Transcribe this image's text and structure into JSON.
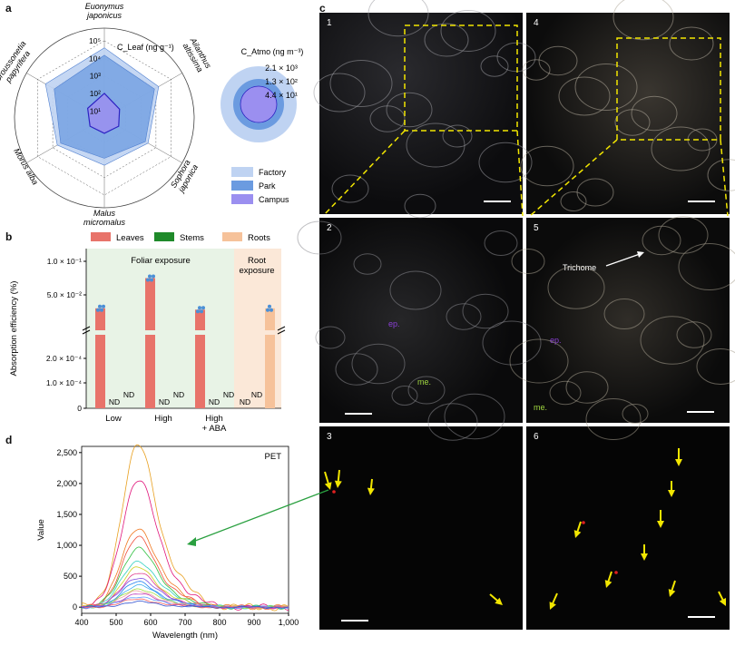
{
  "panel_labels": {
    "a": "a",
    "b": "b",
    "c": "c",
    "d": "d"
  },
  "panel_a": {
    "species": [
      "Euonymus japonicus",
      "Ailanthus altissima",
      "Sophora japonica",
      "Malus micromalus",
      "Morus alba",
      "Broussonetia papyrifera"
    ],
    "species_lines": [
      [
        "Euonymus",
        "japonicus"
      ],
      [
        "Ailanthus",
        "altissima"
      ],
      [
        "Sophora",
        "japonica"
      ],
      [
        "Malus",
        "micromalus"
      ],
      [
        "Morus alba"
      ],
      [
        "Broussonetia",
        "papyrifera"
      ]
    ],
    "axis_title": "C_Leaf (ng g⁻¹)",
    "ticks": [
      "10¹",
      "10²",
      "10³",
      "10⁴",
      "10⁵"
    ],
    "atmo_title": "C_Atmo (ng m⁻³)",
    "atmo_values": [
      "2.1 × 10³",
      "1.3 × 10²",
      "4.4 × 10¹"
    ],
    "legend": [
      "Factory",
      "Park",
      "Campus"
    ],
    "colors": {
      "Factory": "#bfd3f2",
      "Park": "#6b9be0",
      "Campus": "#9b8ff0"
    },
    "chart_data": {
      "type": "radar",
      "categories": [
        "Euonymus japonicus",
        "Ailanthus altissima",
        "Sophora japonica",
        "Malus micromalus",
        "Morus alba",
        "Broussonetia papyrifera"
      ],
      "scale": "log10",
      "rlim": [
        1,
        100000
      ],
      "series": [
        {
          "name": "Factory",
          "values": [
            40000,
            15000,
            3000,
            2000,
            5000,
            30000
          ]
        },
        {
          "name": "Park",
          "values": [
            15000,
            8000,
            2000,
            800,
            3000,
            8000
          ]
        },
        {
          "name": "Campus",
          "values": [
            100,
            40,
            35,
            30,
            35,
            50
          ]
        }
      ]
    }
  },
  "panel_b": {
    "legend": [
      "Leaves",
      "Stems",
      "Roots"
    ],
    "colors": {
      "Leaves": "#e8736a",
      "Stems": "#1f8a2a",
      "Roots": "#f6c29a",
      "foliar_bg": "#e8f3e6",
      "root_bg": "#fbe8d8"
    },
    "region_labels": [
      "Foliar exposure",
      "Root exposure"
    ],
    "root_lines": [
      "Root",
      "exposure"
    ],
    "ylabel": "Absorption efficiency (%)",
    "yticks_top": [
      "1.0 × 10⁻¹",
      "5.0 × 10⁻²"
    ],
    "yticks_bottom": [
      "2.0 × 10⁻⁴",
      "1.0 × 10⁻⁴",
      "0"
    ],
    "groups": [
      "Low",
      "High",
      "High + ABA"
    ],
    "group_lines": [
      [
        "Low"
      ],
      [
        "High"
      ],
      [
        "High",
        "+ ABA"
      ]
    ],
    "nd": "ND",
    "chart_data": {
      "type": "bar",
      "categories": [
        "Low",
        "High",
        "High + ABA",
        "Root exposure"
      ],
      "series": [
        {
          "name": "Leaves",
          "values": [
            0.03,
            0.075,
            0.028,
            null
          ]
        },
        {
          "name": "Stems",
          "values": [
            0,
            0,
            0,
            null
          ]
        },
        {
          "name": "Roots",
          "values": [
            0,
            0,
            0,
            0.03
          ]
        }
      ],
      "ylabel": "Absorption efficiency (%)"
    }
  },
  "panel_c": {
    "numbers": [
      "1",
      "2",
      "3",
      "4",
      "5",
      "6"
    ],
    "trichome": "Trichome",
    "ep": "ep.",
    "me": "me.",
    "colors": {
      "dashed": "#f2e600",
      "arrow": "#f2e600",
      "ep": "#8b3fd6",
      "me": "#9fd640"
    }
  },
  "panel_d": {
    "legend": "PET",
    "xlabel": "Wavelength (nm)",
    "ylabel": "Value",
    "xticks": [
      "400",
      "500",
      "600",
      "700",
      "800",
      "900",
      "1,000"
    ],
    "yticks": [
      "0",
      "500",
      "1,000",
      "1,500",
      "2,000",
      "2,500"
    ],
    "chart_data": {
      "type": "line",
      "x_range": [
        400,
        1000
      ],
      "ylim": [
        -100,
        2600
      ],
      "peak_x": 560,
      "series_peaks": [
        2450,
        1950,
        1200,
        1050,
        900,
        700,
        600,
        520,
        450,
        380,
        330,
        280,
        240,
        200,
        160,
        120,
        80
      ]
    }
  }
}
